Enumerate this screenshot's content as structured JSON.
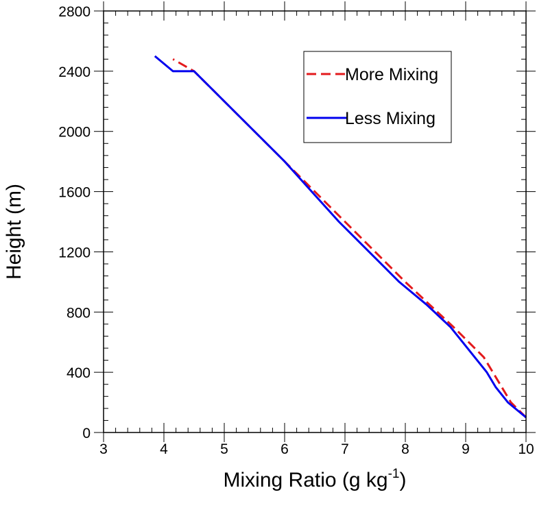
{
  "chart_data": {
    "type": "line",
    "title": "",
    "xlabel": "Mixing Ratio (g kg",
    "xlabel_superscript": "-1",
    "xlabel_suffix": ")",
    "ylabel": "Height (m)",
    "xlim": [
      3,
      10
    ],
    "ylim": [
      0,
      2800
    ],
    "xticks": [
      3,
      4,
      5,
      6,
      7,
      8,
      9,
      10
    ],
    "yticks": [
      0,
      400,
      800,
      1200,
      1600,
      2000,
      2400,
      2800
    ],
    "grid": false,
    "legend_position": "top-right",
    "series": [
      {
        "name": "More Mixing",
        "color": "#e31a1c",
        "dash": "dashed",
        "x": [
          10.0,
          9.75,
          9.6,
          9.45,
          9.3,
          9.05,
          8.8,
          8.4,
          8.0,
          7.5,
          7.0,
          6.5,
          6.0,
          5.5,
          5.0,
          4.5,
          4.15
        ],
        "y": [
          100,
          200,
          300,
          400,
          500,
          600,
          700,
          850,
          1000,
          1200,
          1400,
          1600,
          1800,
          2000,
          2200,
          2400,
          2480
        ]
      },
      {
        "name": "Less Mixing",
        "color": "#0000ee",
        "dash": "solid",
        "x": [
          10.0,
          9.7,
          9.5,
          9.35,
          9.15,
          8.95,
          8.75,
          8.35,
          7.9,
          7.4,
          6.9,
          6.45,
          6.0,
          5.5,
          5.0,
          4.5,
          4.15,
          3.85
        ],
        "y": [
          100,
          200,
          300,
          400,
          500,
          600,
          700,
          850,
          1000,
          1200,
          1400,
          1600,
          1800,
          2000,
          2200,
          2400,
          2400,
          2500
        ]
      }
    ]
  }
}
